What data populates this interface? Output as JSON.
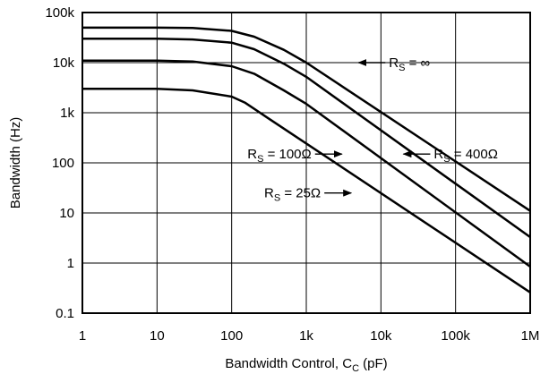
{
  "chart_data": {
    "type": "line",
    "title": "",
    "xlabel": "Bandwidth Control, C",
    "xlabel_sub": "C",
    "xlabel_suffix": " (pF)",
    "ylabel": "Bandwidth (Hz)",
    "x_scale": "log",
    "y_scale": "log",
    "xlim": [
      1,
      1000000
    ],
    "ylim": [
      0.1,
      100000
    ],
    "grid": true,
    "legend": "none",
    "x_ticks": [
      {
        "value": 1,
        "label": "1"
      },
      {
        "value": 10,
        "label": "10"
      },
      {
        "value": 100,
        "label": "100"
      },
      {
        "value": 1000,
        "label": "1k"
      },
      {
        "value": 10000,
        "label": "10k"
      },
      {
        "value": 100000,
        "label": "100k"
      },
      {
        "value": 1000000,
        "label": "1M"
      }
    ],
    "y_ticks": [
      {
        "value": 0.1,
        "label": "0.1"
      },
      {
        "value": 1,
        "label": "1"
      },
      {
        "value": 10,
        "label": "10"
      },
      {
        "value": 100,
        "label": "100"
      },
      {
        "value": 1000,
        "label": "1k"
      },
      {
        "value": 10000,
        "label": "10k"
      },
      {
        "value": 100000,
        "label": "100k"
      }
    ],
    "series": [
      {
        "name": "R_S = ∞",
        "x": [
          1,
          10,
          30,
          100,
          200,
          500,
          1000,
          1000000
        ],
        "y": [
          50000,
          50000,
          49000,
          43000,
          33000,
          18000,
          10000,
          11
        ]
      },
      {
        "name": "R_S = 400Ω",
        "x": [
          1,
          10,
          30,
          100,
          200,
          500,
          1000,
          1000000
        ],
        "y": [
          30000,
          30000,
          29000,
          25000,
          18500,
          9500,
          5200,
          3.3
        ]
      },
      {
        "name": "R_S = 100Ω",
        "x": [
          1,
          10,
          30,
          100,
          200,
          500,
          1000,
          1000000
        ],
        "y": [
          11000,
          11000,
          10500,
          8500,
          6000,
          2800,
          1500,
          0.85
        ]
      },
      {
        "name": "R_S = 25Ω",
        "x": [
          1,
          10,
          30,
          100,
          150,
          300,
          1000000
        ],
        "y": [
          3000,
          3000,
          2800,
          2100,
          1600,
          800,
          0.26
        ]
      }
    ],
    "annotations": [
      {
        "main": "R",
        "sub": "S",
        "rest": " = ∞",
        "arrow_to": {
          "x": 5000,
          "y": 10000
        },
        "direction": "left"
      },
      {
        "main": "R",
        "sub": "S",
        "rest": " = 400Ω",
        "arrow_to": {
          "x": 20000,
          "y": 150
        },
        "direction": "left"
      },
      {
        "main": "R",
        "sub": "S",
        "rest": " = 100Ω",
        "arrow_to": {
          "x": 3000,
          "y": 150
        },
        "direction": "right"
      },
      {
        "main": "R",
        "sub": "S",
        "rest": " = 25Ω",
        "arrow_to": {
          "x": 4000,
          "y": 25
        },
        "direction": "right"
      }
    ]
  }
}
